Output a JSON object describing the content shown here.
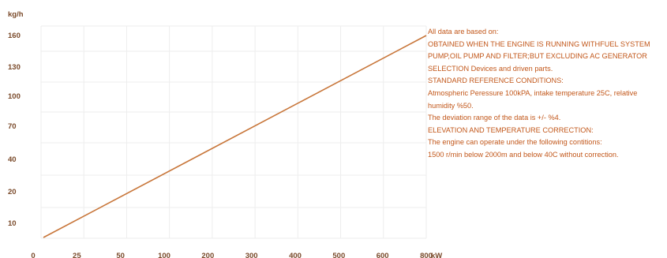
{
  "chart_data": {
    "type": "line",
    "ylabel": "kg/h",
    "xlabel": "kW",
    "y_ticks": [
      "160",
      "130",
      "100",
      "70",
      "40",
      "20",
      "10"
    ],
    "x_ticks": [
      "0",
      "25",
      "50",
      "100",
      "200",
      "300",
      "400",
      "500",
      "600",
      "800"
    ],
    "series": [
      {
        "color": "#c8763a",
        "points_index": [
          [
            0,
            5.5
          ],
          [
            9,
            160
          ]
        ]
      }
    ],
    "grid": true,
    "line_color": "#c8763a"
  },
  "notes": [
    "All data are based on:",
    "OBTAINED WHEN THE ENGINE IS RUNNING WITHFUEL SYSTEM",
    "PUMP,OIL PUMP AND FILTER;BUT EXCLUDING AC GENERATOR",
    "SELECTION Devices and driven parts.",
    "STANDARD REFERENCE CONDITIONS:",
    "Atmospheric Peressure 100kPA, intake temperature 25C, relative",
    "humidity %50.",
    "The deviation range of the data is +/- %4.",
    "ELEVATION AND TEMPERATURE CORRECTION:",
    "The engine can operate under the following contitions:",
    "1500 r/min below 2000m and below 40C without correction."
  ]
}
